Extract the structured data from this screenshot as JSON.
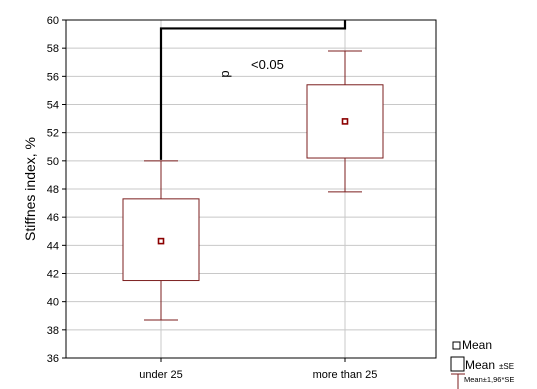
{
  "chart_data": {
    "type": "box",
    "ylabel": "Stiffnes index, %",
    "ylim": [
      36,
      60
    ],
    "yticks": [
      36,
      38,
      40,
      42,
      44,
      46,
      48,
      50,
      52,
      54,
      56,
      58,
      60
    ],
    "categories": [
      "under 25",
      "more than 25"
    ],
    "groups": [
      {
        "category": "under 25",
        "mean": 44.3,
        "se_low": 41.5,
        "se_high": 47.3,
        "ci_low": 38.7,
        "ci_high": 50.0
      },
      {
        "category": "more than 25",
        "mean": 52.8,
        "se_low": 50.2,
        "se_high": 55.4,
        "ci_low": 47.8,
        "ci_high": 57.8
      }
    ],
    "grid": true,
    "significance": {
      "bracket_level": 59.4,
      "p_letter": "p",
      "text": "<0.05"
    },
    "legend": {
      "position": "bottom-right",
      "items": [
        {
          "label": "Mean",
          "symbol": "square-marker"
        },
        {
          "label": "Mean",
          "suffix": "±SE",
          "symbol": "box"
        },
        {
          "label": "Mean±1,96*SE",
          "symbol": "whisker"
        }
      ]
    },
    "colors": {
      "box": "#7b1e1e",
      "mean_marker": "#8b0000",
      "grid": "#c8c8c8",
      "bracket": "#000000"
    }
  }
}
